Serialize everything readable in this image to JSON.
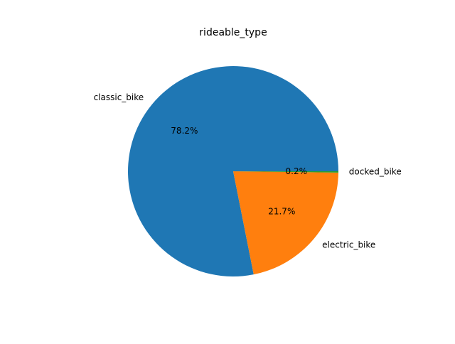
{
  "chart_data": {
    "type": "pie",
    "title": "rideable_type",
    "slices": [
      {
        "label": "classic_bike",
        "pct_label": "78.2%",
        "value": 78.2,
        "color": "#1f77b4"
      },
      {
        "label": "electric_bike",
        "pct_label": "21.7%",
        "value": 21.7,
        "color": "#ff7f0e"
      },
      {
        "label": "docked_bike",
        "pct_label": "0.2%",
        "value": 0.2,
        "color": "#2ca02c"
      }
    ],
    "start_angle_deg": 0,
    "direction": "counterclockwise",
    "legend": "none"
  }
}
